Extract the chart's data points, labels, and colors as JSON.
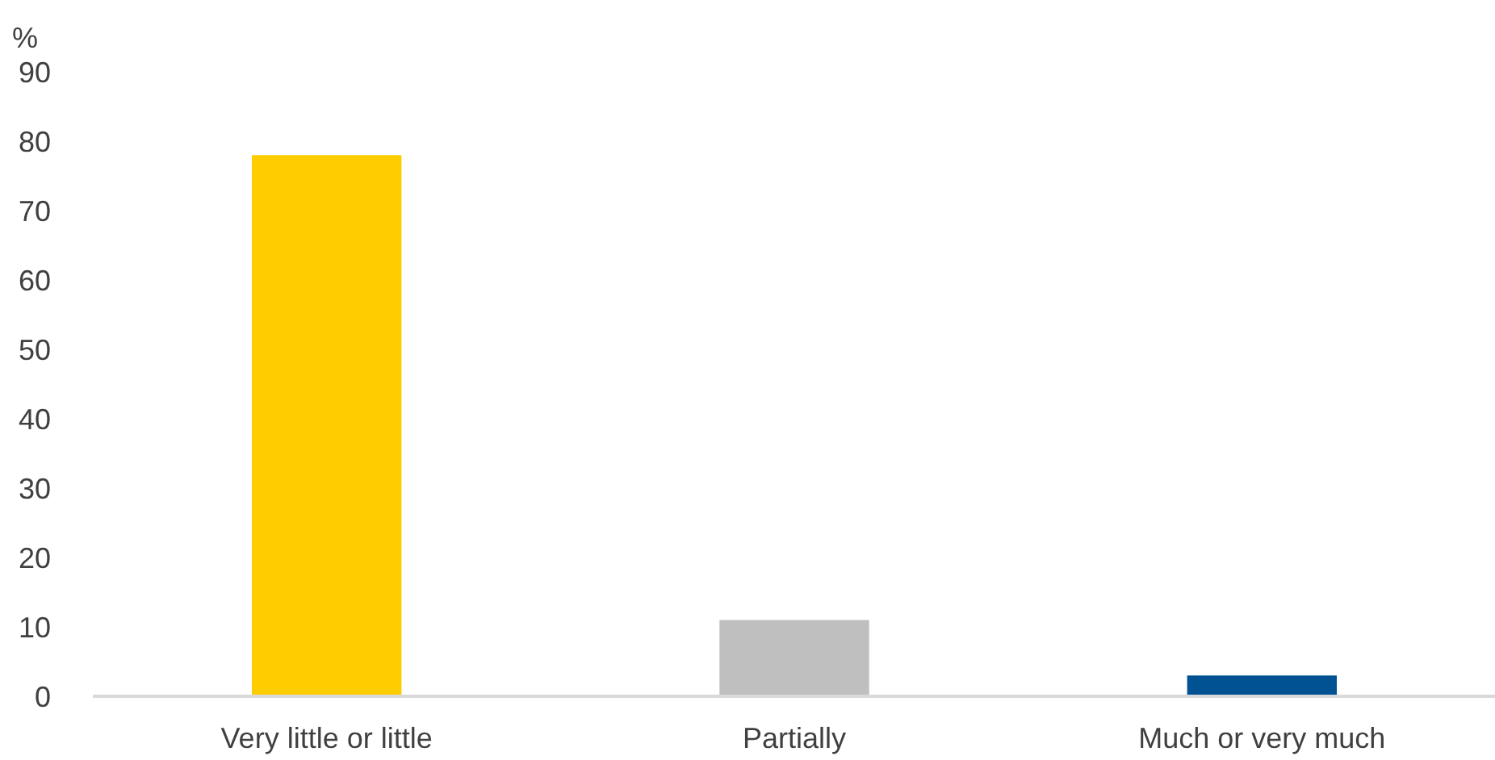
{
  "chart_data": {
    "type": "bar",
    "ylabel": "%",
    "categories": [
      "Very little or little",
      "Partially",
      "Much or very much"
    ],
    "values": [
      78,
      11,
      3
    ],
    "colors": [
      "#ffcc00",
      "#bfbfbf",
      "#005293"
    ],
    "ylim": [
      0,
      90
    ],
    "yticks": [
      0,
      10,
      20,
      30,
      40,
      50,
      60,
      70,
      80,
      90
    ],
    "grid": false
  }
}
